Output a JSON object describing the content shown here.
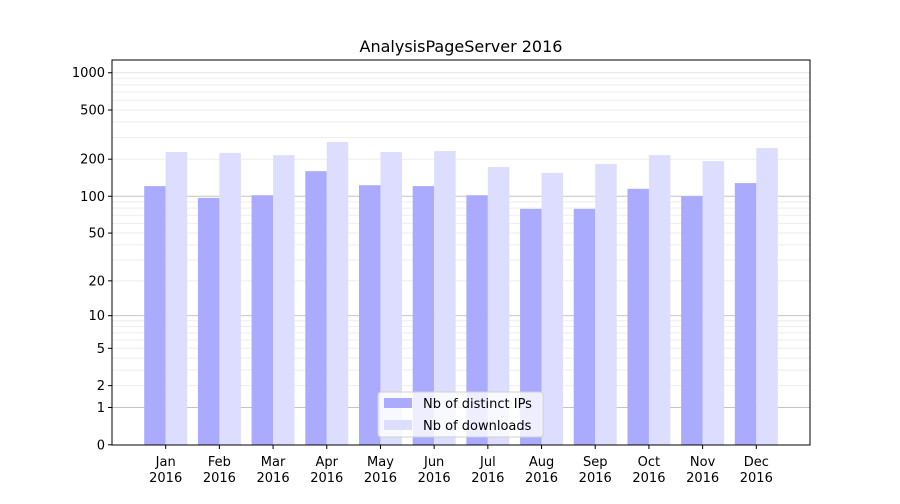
{
  "chart_data": {
    "type": "bar",
    "title": "AnalysisPageServer 2016",
    "xlabel": "",
    "ylabel": "",
    "yscale": "log10(1+y)",
    "ylim": [
      0,
      1300
    ],
    "yticks": [
      0,
      1,
      2,
      5,
      10,
      20,
      50,
      100,
      200,
      500,
      1000
    ],
    "grid": true,
    "legend_position": "bottom-center",
    "categories": [
      "Jan\n2016",
      "Feb\n2016",
      "Mar\n2016",
      "Apr\n2016",
      "May\n2016",
      "Jun\n2016",
      "Jul\n2016",
      "Aug\n2016",
      "Sep\n2016",
      "Oct\n2016",
      "Nov\n2016",
      "Dec\n2016"
    ],
    "series": [
      {
        "name": "Nb of distinct IPs",
        "color": "#aaaaff",
        "values": [
          121,
          97,
          102,
          160,
          123,
          121,
          102,
          79,
          79,
          115,
          100,
          128
        ]
      },
      {
        "name": "Nb of downloads",
        "color": "#ddddff",
        "values": [
          229,
          225,
          216,
          276,
          229,
          233,
          173,
          155,
          183,
          216,
          193,
          246
        ]
      }
    ]
  }
}
